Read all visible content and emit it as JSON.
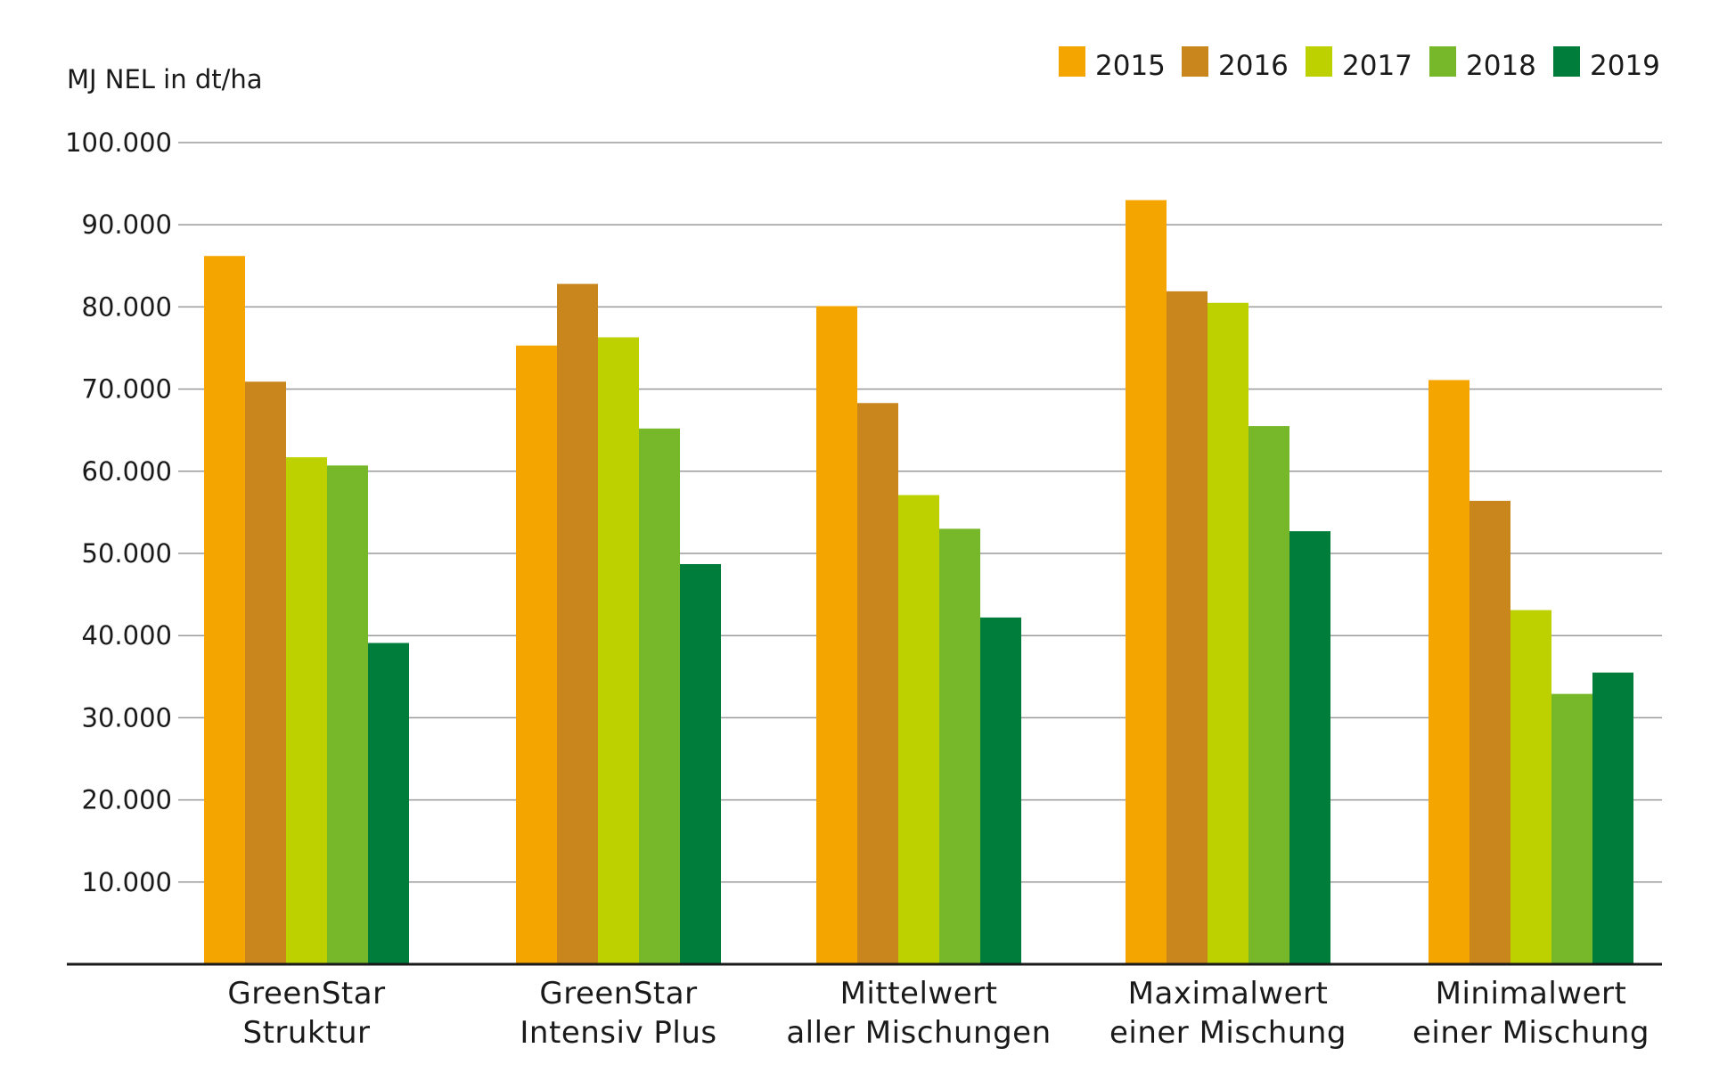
{
  "chart_data": {
    "type": "bar",
    "ylabel": "MJ NEL in dt/ha",
    "ylim": [
      0,
      100000
    ],
    "yticks": [
      {
        "value": 10000,
        "label": "10.000"
      },
      {
        "value": 20000,
        "label": "20.000"
      },
      {
        "value": 30000,
        "label": "30.000"
      },
      {
        "value": 40000,
        "label": "40.000"
      },
      {
        "value": 50000,
        "label": "50.000"
      },
      {
        "value": 60000,
        "label": "60.000"
      },
      {
        "value": 70000,
        "label": "70.000"
      },
      {
        "value": 80000,
        "label": "80.000"
      },
      {
        "value": 90000,
        "label": "90.000"
      },
      {
        "value": 100000,
        "label": "100.000"
      }
    ],
    "grid": true,
    "legend_position": "top-right",
    "categories": [
      {
        "line1": "GreenStar",
        "line2": "Struktur"
      },
      {
        "line1": "GreenStar",
        "line2": "Intensiv Plus"
      },
      {
        "line1": "Mittelwert",
        "line2": "aller Mischungen"
      },
      {
        "line1": "Maximalwert",
        "line2": "einer Mischung"
      },
      {
        "line1": "Minimalwert",
        "line2": "einer Mischung"
      }
    ],
    "series": [
      {
        "name": "2015",
        "color": "#F5A500",
        "values": [
          86200,
          75300,
          80100,
          93000,
          71100
        ]
      },
      {
        "name": "2016",
        "color": "#C8861D",
        "values": [
          70900,
          82800,
          68300,
          81900,
          56400
        ]
      },
      {
        "name": "2017",
        "color": "#BDD100",
        "values": [
          61700,
          76300,
          57100,
          80500,
          43100
        ]
      },
      {
        "name": "2018",
        "color": "#77B82A",
        "values": [
          60700,
          65200,
          53000,
          65500,
          32900
        ]
      },
      {
        "name": "2019",
        "color": "#007D3A",
        "values": [
          39100,
          48700,
          42200,
          52700,
          35500
        ]
      }
    ]
  }
}
